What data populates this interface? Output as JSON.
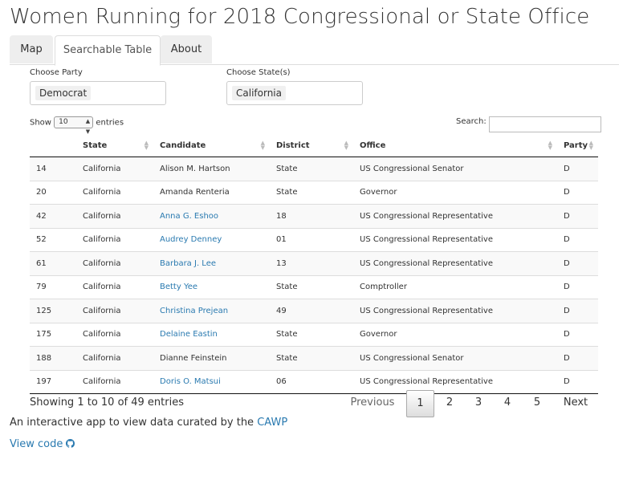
{
  "title": "Women Running for 2018 Congressional or State Office",
  "tabs": [
    "Map",
    "Searchable Table",
    "About"
  ],
  "filters": {
    "party_label": "Choose Party",
    "party_value": "Democrat",
    "state_label": "Choose State(s)",
    "state_value": "California"
  },
  "table_controls": {
    "show_label": "Show",
    "entries_value": "10",
    "entries_label": "entries",
    "search_label": "Search:"
  },
  "columns": [
    "",
    "State",
    "Candidate",
    "District",
    "Office",
    "Party"
  ],
  "rows": [
    {
      "id": "14",
      "state": "California",
      "candidate": "Alison M. Hartson",
      "link": false,
      "district": "State",
      "office": "US Congressional Senator",
      "party": "D"
    },
    {
      "id": "20",
      "state": "California",
      "candidate": "Amanda Renteria",
      "link": false,
      "district": "State",
      "office": "Governor",
      "party": "D"
    },
    {
      "id": "42",
      "state": "California",
      "candidate": "Anna G. Eshoo",
      "link": true,
      "district": "18",
      "office": "US Congressional Representative",
      "party": "D"
    },
    {
      "id": "52",
      "state": "California",
      "candidate": "Audrey Denney",
      "link": true,
      "district": "01",
      "office": "US Congressional Representative",
      "party": "D"
    },
    {
      "id": "61",
      "state": "California",
      "candidate": "Barbara J. Lee",
      "link": true,
      "district": "13",
      "office": "US Congressional Representative",
      "party": "D"
    },
    {
      "id": "79",
      "state": "California",
      "candidate": "Betty Yee",
      "link": true,
      "district": "State",
      "office": "Comptroller",
      "party": "D"
    },
    {
      "id": "125",
      "state": "California",
      "candidate": "Christina Prejean",
      "link": true,
      "district": "49",
      "office": "US Congressional Representative",
      "party": "D"
    },
    {
      "id": "175",
      "state": "California",
      "candidate": "Delaine Eastin",
      "link": true,
      "district": "State",
      "office": "Governor",
      "party": "D"
    },
    {
      "id": "188",
      "state": "California",
      "candidate": "Dianne Feinstein",
      "link": false,
      "district": "State",
      "office": "US Congressional Senator",
      "party": "D"
    },
    {
      "id": "197",
      "state": "California",
      "candidate": "Doris O. Matsui",
      "link": true,
      "district": "06",
      "office": "US Congressional Representative",
      "party": "D"
    }
  ],
  "pagination": {
    "info": "Showing 1 to 10 of 49 entries",
    "previous": "Previous",
    "pages": [
      "1",
      "2",
      "3",
      "4",
      "5"
    ],
    "current": "1",
    "next": "Next"
  },
  "footer": {
    "text": "An interactive app to view data curated by the ",
    "link": "CAWP",
    "view_code": "View code"
  },
  "colors": {
    "link": "#2a7ab0",
    "tab_bg": "#eeeeee",
    "odd_row": "#f9f9f9"
  }
}
